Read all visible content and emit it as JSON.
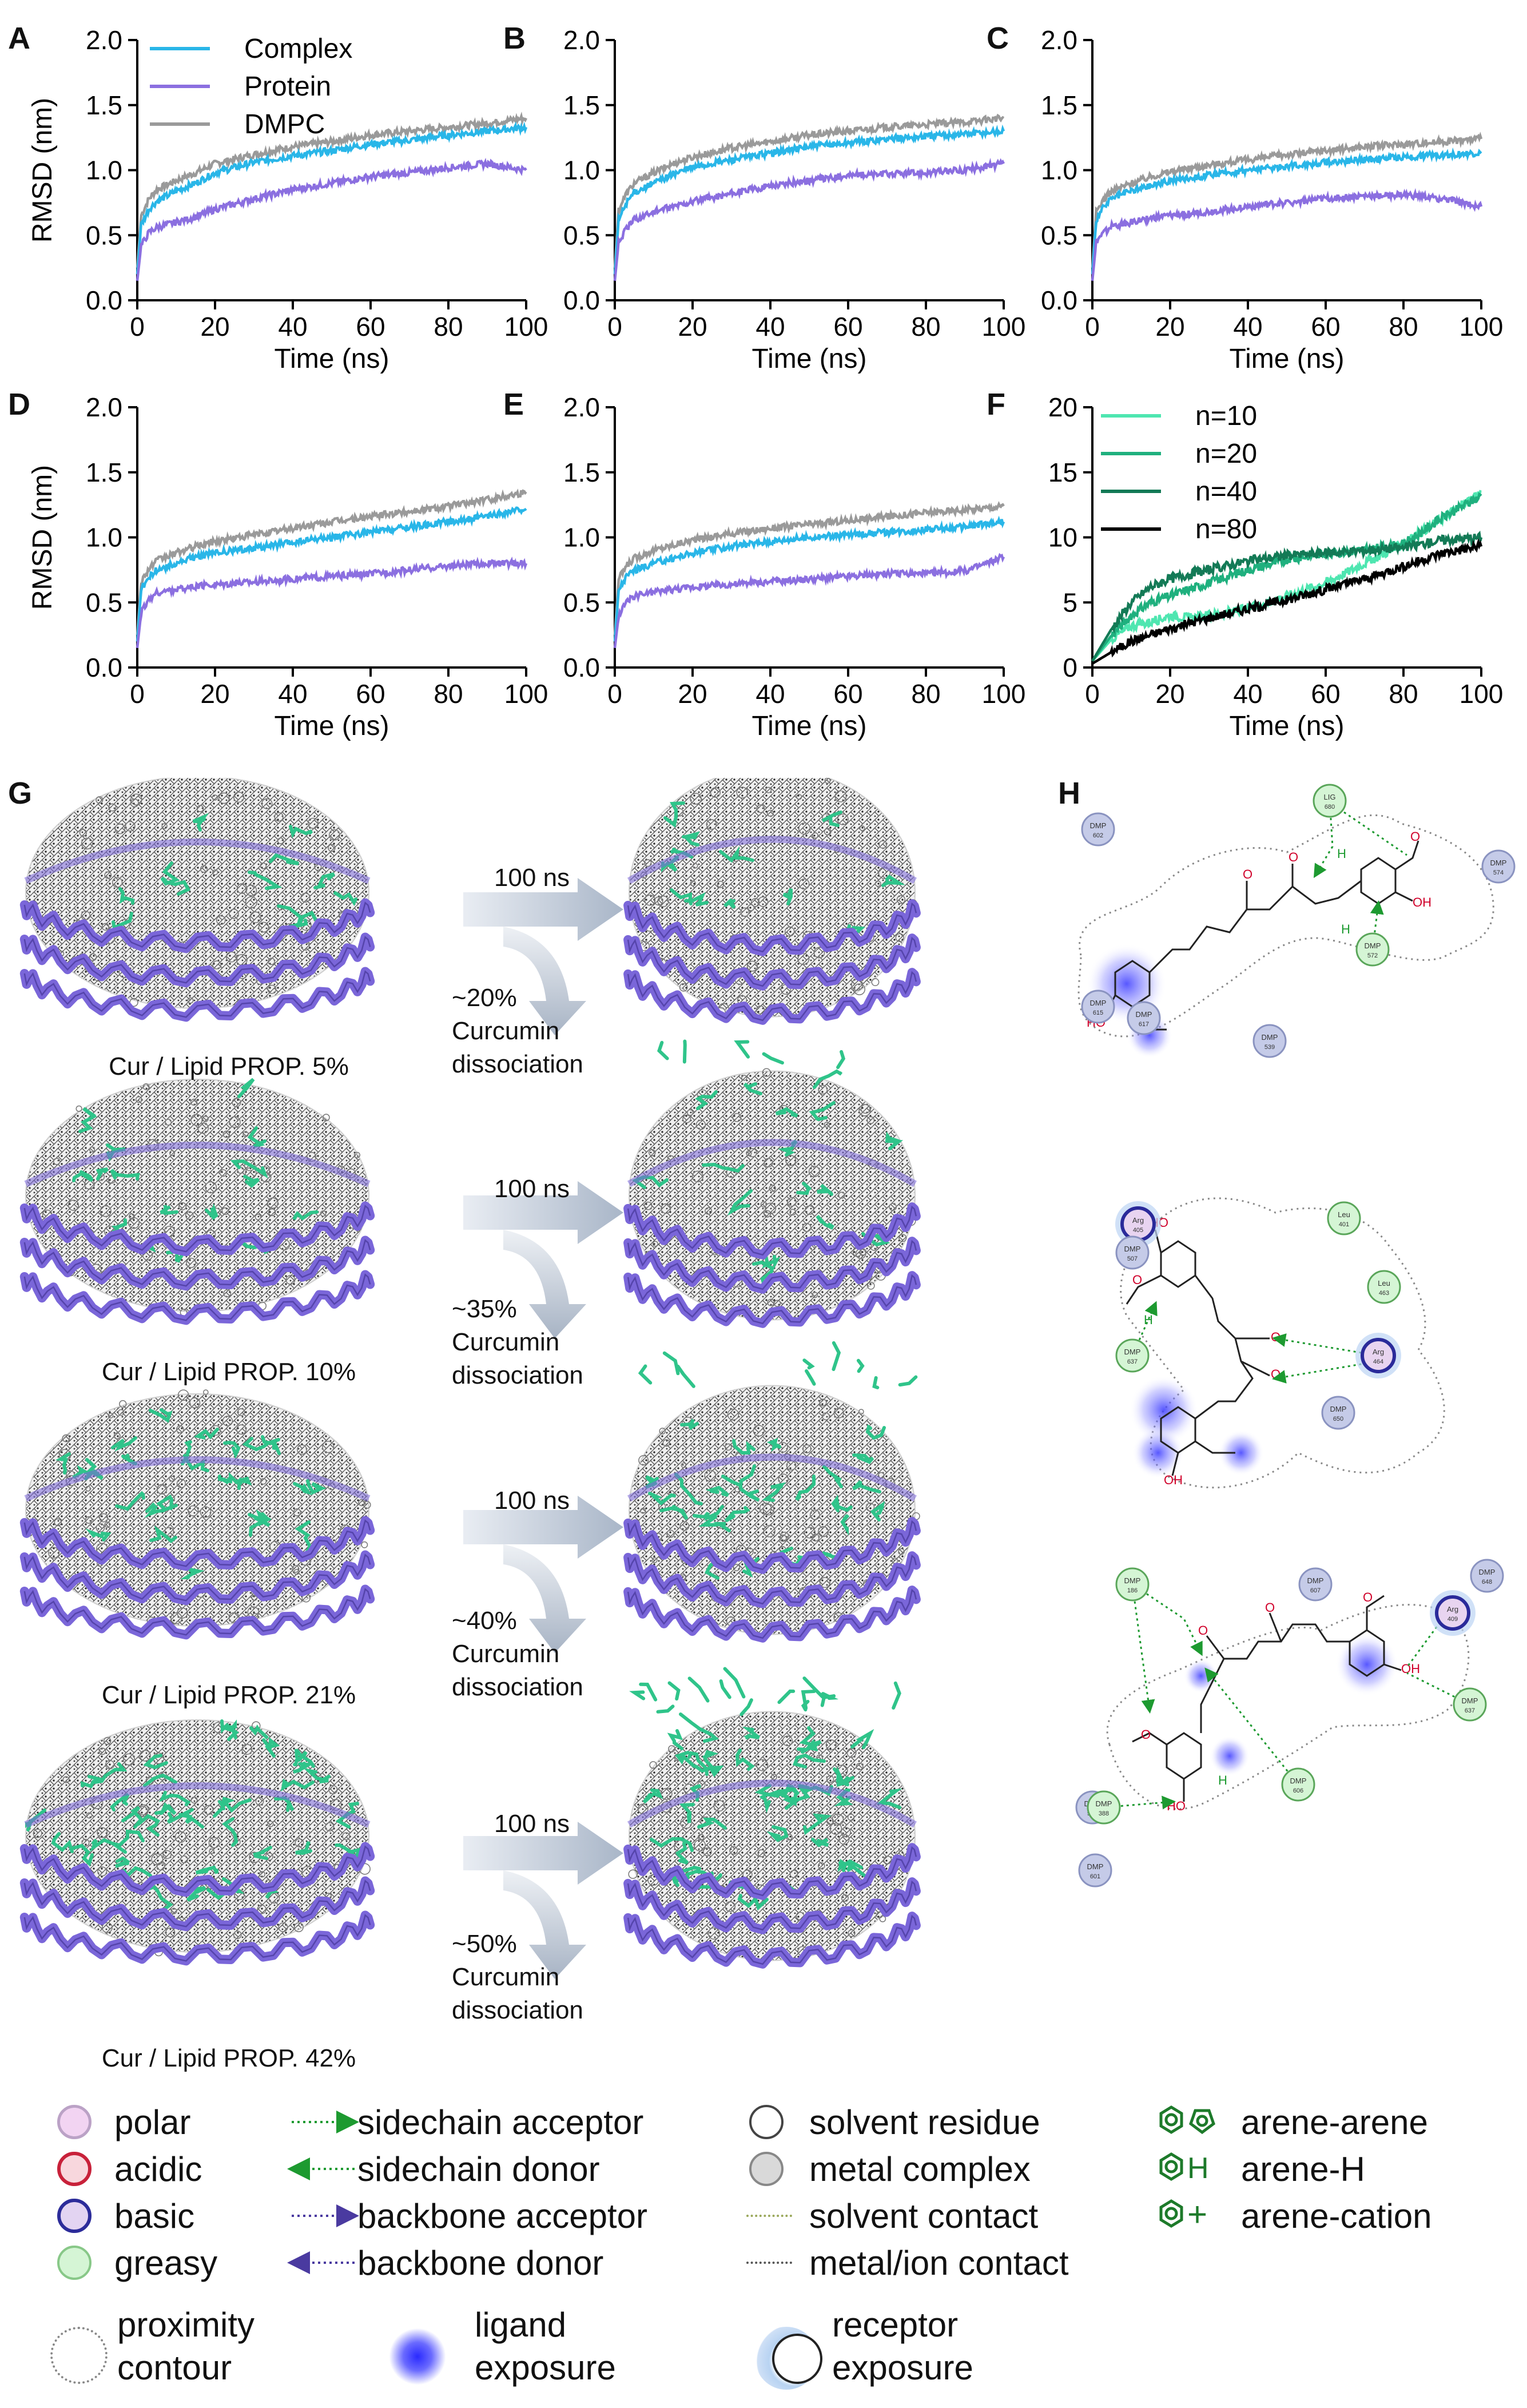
{
  "panel_labels": {
    "a": "A",
    "b": "B",
    "c": "C",
    "d": "D",
    "e": "E",
    "f": "F",
    "g": "G",
    "h": "H"
  },
  "colors": {
    "complex": "#29b6e8",
    "protein": "#8b6fe0",
    "dmpc": "#9a9a9a",
    "n10": "#4ee6b0",
    "n20": "#1fb07e",
    "n40": "#137a56",
    "n80": "#000000",
    "helix": "#7a66d9",
    "curcumin": "#2fc48a"
  },
  "chart_data": [
    {
      "id": "A",
      "type": "line",
      "xlabel": "Time (ns)",
      "ylabel": "RMSD (nm)",
      "xlim": [
        0,
        100
      ],
      "ylim": [
        0,
        2.0
      ],
      "xticks": [
        0,
        20,
        40,
        60,
        80,
        100
      ],
      "yticks": [
        0.0,
        0.5,
        1.0,
        1.5,
        2.0
      ],
      "legend": [
        "Complex",
        "Protein",
        "DMPC"
      ],
      "x": [
        0,
        1,
        3,
        5,
        10,
        15,
        20,
        30,
        40,
        50,
        60,
        70,
        80,
        90,
        100
      ],
      "series": [
        {
          "name": "DMPC",
          "values": [
            0.25,
            0.65,
            0.78,
            0.85,
            0.92,
            0.98,
            1.05,
            1.12,
            1.18,
            1.22,
            1.27,
            1.3,
            1.33,
            1.36,
            1.4
          ]
        },
        {
          "name": "Complex",
          "values": [
            0.2,
            0.58,
            0.7,
            0.76,
            0.84,
            0.9,
            0.98,
            1.06,
            1.11,
            1.15,
            1.2,
            1.23,
            1.27,
            1.3,
            1.33
          ]
        },
        {
          "name": "Protein",
          "values": [
            0.15,
            0.42,
            0.52,
            0.56,
            0.6,
            0.64,
            0.7,
            0.78,
            0.85,
            0.9,
            0.95,
            0.98,
            1.02,
            1.05,
            1.0
          ]
        }
      ]
    },
    {
      "id": "B",
      "type": "line",
      "xlabel": "Time (ns)",
      "ylabel": "",
      "xlim": [
        0,
        100
      ],
      "ylim": [
        0,
        2.0
      ],
      "xticks": [
        0,
        20,
        40,
        60,
        80,
        100
      ],
      "yticks": [
        0.0,
        0.5,
        1.0,
        1.5,
        2.0
      ],
      "x": [
        0,
        1,
        3,
        5,
        10,
        15,
        20,
        30,
        40,
        50,
        60,
        70,
        80,
        90,
        100
      ],
      "series": [
        {
          "name": "DMPC",
          "values": [
            0.25,
            0.7,
            0.82,
            0.9,
            0.98,
            1.05,
            1.1,
            1.17,
            1.22,
            1.27,
            1.3,
            1.33,
            1.35,
            1.37,
            1.4
          ]
        },
        {
          "name": "Complex",
          "values": [
            0.2,
            0.62,
            0.75,
            0.83,
            0.9,
            0.97,
            1.02,
            1.08,
            1.13,
            1.18,
            1.21,
            1.24,
            1.26,
            1.28,
            1.3
          ]
        },
        {
          "name": "Protein",
          "values": [
            0.15,
            0.45,
            0.55,
            0.62,
            0.68,
            0.72,
            0.76,
            0.82,
            0.88,
            0.92,
            0.96,
            0.97,
            0.98,
            1.0,
            1.05
          ]
        }
      ]
    },
    {
      "id": "C",
      "type": "line",
      "xlabel": "Time (ns)",
      "ylabel": "",
      "xlim": [
        0,
        100
      ],
      "ylim": [
        0,
        2.0
      ],
      "xticks": [
        0,
        20,
        40,
        60,
        80,
        100
      ],
      "yticks": [
        0.0,
        0.5,
        1.0,
        1.5,
        2.0
      ],
      "x": [
        0,
        1,
        3,
        5,
        10,
        15,
        20,
        30,
        40,
        50,
        60,
        70,
        80,
        90,
        100
      ],
      "series": [
        {
          "name": "DMPC",
          "values": [
            0.25,
            0.68,
            0.78,
            0.84,
            0.9,
            0.95,
            0.99,
            1.04,
            1.08,
            1.12,
            1.15,
            1.18,
            1.2,
            1.22,
            1.24
          ]
        },
        {
          "name": "Complex",
          "values": [
            0.2,
            0.62,
            0.72,
            0.78,
            0.84,
            0.88,
            0.92,
            0.96,
            1.0,
            1.03,
            1.06,
            1.08,
            1.1,
            1.12,
            1.13
          ]
        },
        {
          "name": "Protein",
          "values": [
            0.15,
            0.45,
            0.52,
            0.57,
            0.6,
            0.63,
            0.65,
            0.68,
            0.72,
            0.75,
            0.78,
            0.8,
            0.81,
            0.78,
            0.72
          ]
        }
      ]
    },
    {
      "id": "D",
      "type": "line",
      "xlabel": "Time (ns)",
      "ylabel": "RMSD (nm)",
      "xlim": [
        0,
        100
      ],
      "ylim": [
        0,
        2.0
      ],
      "xticks": [
        0,
        20,
        40,
        60,
        80,
        100
      ],
      "yticks": [
        0.0,
        0.5,
        1.0,
        1.5,
        2.0
      ],
      "x": [
        0,
        1,
        3,
        5,
        10,
        15,
        20,
        30,
        40,
        50,
        60,
        70,
        80,
        90,
        100
      ],
      "series": [
        {
          "name": "DMPC",
          "values": [
            0.25,
            0.66,
            0.76,
            0.82,
            0.88,
            0.93,
            0.97,
            1.02,
            1.07,
            1.12,
            1.16,
            1.2,
            1.24,
            1.29,
            1.35
          ]
        },
        {
          "name": "Complex",
          "values": [
            0.2,
            0.6,
            0.7,
            0.75,
            0.8,
            0.85,
            0.88,
            0.92,
            0.96,
            1.0,
            1.04,
            1.08,
            1.12,
            1.16,
            1.22
          ]
        },
        {
          "name": "Protein",
          "values": [
            0.15,
            0.42,
            0.52,
            0.57,
            0.6,
            0.62,
            0.64,
            0.66,
            0.68,
            0.7,
            0.72,
            0.75,
            0.78,
            0.8,
            0.8
          ]
        }
      ]
    },
    {
      "id": "E",
      "type": "line",
      "xlabel": "Time (ns)",
      "ylabel": "",
      "xlim": [
        0,
        100
      ],
      "ylim": [
        0,
        2.0
      ],
      "xticks": [
        0,
        20,
        40,
        60,
        80,
        100
      ],
      "yticks": [
        0.0,
        0.5,
        1.0,
        1.5,
        2.0
      ],
      "x": [
        0,
        1,
        3,
        5,
        10,
        15,
        20,
        30,
        40,
        50,
        60,
        70,
        80,
        90,
        100
      ],
      "series": [
        {
          "name": "DMPC",
          "values": [
            0.25,
            0.68,
            0.78,
            0.84,
            0.9,
            0.94,
            0.98,
            1.03,
            1.07,
            1.1,
            1.13,
            1.16,
            1.19,
            1.21,
            1.24
          ]
        },
        {
          "name": "Complex",
          "values": [
            0.2,
            0.6,
            0.7,
            0.75,
            0.8,
            0.84,
            0.88,
            0.93,
            0.97,
            1.0,
            1.02,
            1.04,
            1.06,
            1.08,
            1.12
          ]
        },
        {
          "name": "Protein",
          "values": [
            0.15,
            0.4,
            0.5,
            0.55,
            0.58,
            0.6,
            0.62,
            0.64,
            0.66,
            0.68,
            0.7,
            0.72,
            0.72,
            0.74,
            0.85
          ]
        }
      ]
    },
    {
      "id": "F",
      "type": "line",
      "xlabel": "Time (ns)",
      "ylabel": "",
      "xlim": [
        0,
        100
      ],
      "ylim": [
        0,
        20
      ],
      "xticks": [
        0,
        20,
        40,
        60,
        80,
        100
      ],
      "yticks": [
        0,
        5,
        10,
        15,
        20
      ],
      "legend": [
        "n=10",
        "n=20",
        "n=40",
        "n=80"
      ],
      "x": [
        0,
        5,
        10,
        15,
        20,
        25,
        30,
        40,
        50,
        60,
        70,
        80,
        90,
        100
      ],
      "series": [
        {
          "name": "n=10",
          "values": [
            0.5,
            2.2,
            3.2,
            3.5,
            4.0,
            3.8,
            4.0,
            4.5,
            5.5,
            6.5,
            8.0,
            9.5,
            11.5,
            13.5
          ]
        },
        {
          "name": "n=20",
          "values": [
            0.5,
            2.5,
            4.0,
            5.0,
            5.5,
            6.0,
            6.5,
            7.5,
            8.3,
            8.8,
            9.0,
            9.5,
            11.5,
            13.2
          ]
        },
        {
          "name": "n=40",
          "values": [
            0.5,
            3.0,
            5.0,
            6.2,
            6.8,
            7.2,
            7.5,
            8.2,
            8.6,
            8.8,
            9.0,
            9.2,
            9.8,
            10.0
          ]
        },
        {
          "name": "n=80",
          "values": [
            0.3,
            1.2,
            2.0,
            2.5,
            3.0,
            3.4,
            3.8,
            4.5,
            5.2,
            6.0,
            6.8,
            7.8,
            8.8,
            9.3
          ]
        }
      ]
    }
  ],
  "snapshots": [
    {
      "caption": "Cur / Lipid PROP. 5%",
      "time": "100 ns",
      "dissociation": "~20%",
      "word1": "Curcumin",
      "word2": "dissociation"
    },
    {
      "caption": "Cur / Lipid PROP. 10%",
      "time": "100 ns",
      "dissociation": "~35%",
      "word1": "Curcumin",
      "word2": "dissociation"
    },
    {
      "caption": "Cur / Lipid PROP. 21%",
      "time": "100 ns",
      "dissociation": "~40%",
      "word1": "Curcumin",
      "word2": "dissociation"
    },
    {
      "caption": "Cur / Lipid PROP. 42%",
      "time": "100 ns",
      "dissociation": "~50%",
      "word1": "Curcumin",
      "word2": "dissociation"
    }
  ],
  "interaction_maps": [
    {
      "residues": [
        {
          "name": "DMP",
          "num": "602",
          "kind": "lipid"
        },
        {
          "name": "LIG",
          "num": "680",
          "kind": "greasy"
        },
        {
          "name": "DMP",
          "num": "574",
          "kind": "lipid"
        },
        {
          "name": "DMP",
          "num": "572",
          "kind": "greasy"
        },
        {
          "name": "DMP",
          "num": "615",
          "kind": "lipid"
        },
        {
          "name": "DMP",
          "num": "617",
          "kind": "lipid"
        },
        {
          "name": "DMP",
          "num": "539",
          "kind": "lipid"
        }
      ],
      "atoms": {
        "o1": "O",
        "o2": "O",
        "o3": "O",
        "ho": "HO",
        "oh": "OH",
        "h1": "H",
        "h2": "H"
      }
    },
    {
      "residues": [
        {
          "name": "Arg",
          "num": "405",
          "kind": "basic"
        },
        {
          "name": "Leu",
          "num": "401",
          "kind": "greasy"
        },
        {
          "name": "DMP",
          "num": "507",
          "kind": "lipid"
        },
        {
          "name": "Leu",
          "num": "463",
          "kind": "greasy"
        },
        {
          "name": "DMP",
          "num": "637",
          "kind": "greasy"
        },
        {
          "name": "Arg",
          "num": "464",
          "kind": "basic"
        },
        {
          "name": "DMP",
          "num": "650",
          "kind": "lipid"
        }
      ],
      "atoms": {
        "ho": "HO",
        "o1": "O",
        "o2": "O",
        "o3": "O",
        "oh": "OH",
        "h1": "H"
      }
    },
    {
      "residues": [
        {
          "name": "DMP",
          "num": "186",
          "kind": "greasy"
        },
        {
          "name": "DMP",
          "num": "607",
          "kind": "lipid"
        },
        {
          "name": "DMP",
          "num": "648",
          "kind": "lipid"
        },
        {
          "name": "Arg",
          "num": "409",
          "kind": "basic"
        },
        {
          "name": "DMP",
          "num": "637",
          "kind": "greasy"
        },
        {
          "name": "DMP",
          "num": "606",
          "kind": "greasy"
        },
        {
          "name": "DMP",
          "num": "571",
          "kind": "lipid"
        },
        {
          "name": "DMP",
          "num": "388",
          "kind": "greasy"
        },
        {
          "name": "DMP",
          "num": "601",
          "kind": "lipid"
        }
      ],
      "atoms": {
        "o1": "O",
        "o2": "O",
        "o3": "O",
        "o4": "O",
        "oh": "OH",
        "ho": "HO",
        "h1": "H"
      }
    }
  ],
  "legend": {
    "col1": [
      "polar",
      "acidic",
      "basic",
      "greasy"
    ],
    "col2": [
      "sidechain acceptor",
      "sidechain donor",
      "backbone acceptor",
      "backbone donor"
    ],
    "col3": [
      "solvent residue",
      "metal complex",
      "solvent contact",
      "metal/ion contact"
    ],
    "col4": [
      "arene-arene",
      "arene-H",
      "arene-cation"
    ],
    "arene_h_glyph": "H",
    "arene_cation_glyph": "+",
    "proximity": [
      "proximity",
      "contour"
    ],
    "ligand": [
      "ligand",
      "exposure"
    ],
    "receptor": [
      "receptor",
      "exposure"
    ]
  }
}
